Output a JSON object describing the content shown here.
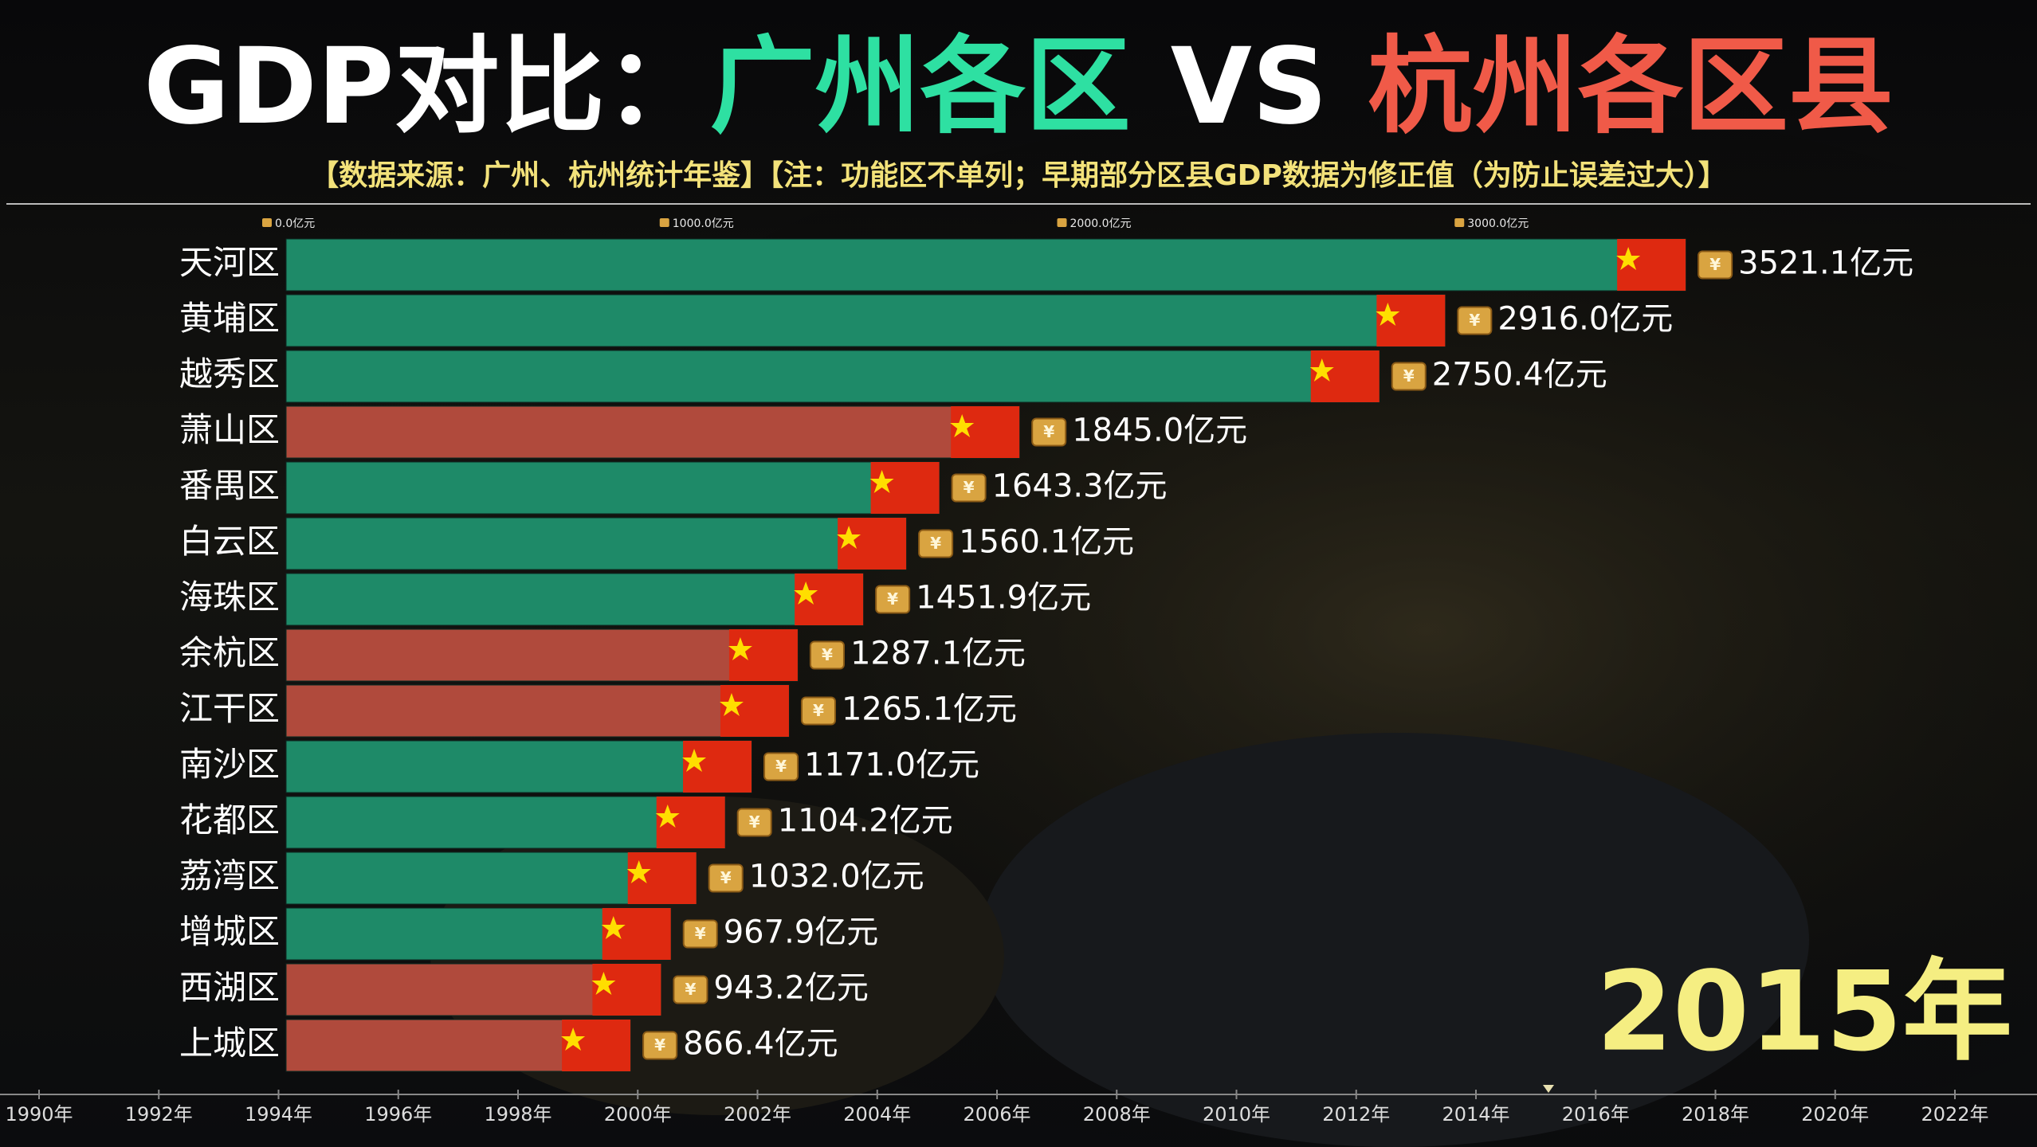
{
  "chart_data": {
    "type": "bar",
    "title": {
      "prefix": "GDP对比：",
      "left": "广州各区",
      "vs": "VS",
      "right": "杭州各区县"
    },
    "subtitle": "【数据来源：广州、杭州统计年鉴】【注：功能区不单列；早期部分区县GDP数据为修正值（为防止误差过大）】",
    "categories": [
      "天河区",
      "黄埔区",
      "越秀区",
      "萧山区",
      "番禺区",
      "白云区",
      "海珠区",
      "余杭区",
      "江干区",
      "南沙区",
      "花都区",
      "荔湾区",
      "增城区",
      "西湖区",
      "上城区"
    ],
    "values": [
      3521.1,
      2916.0,
      2750.4,
      1845.0,
      1643.3,
      1560.1,
      1451.9,
      1287.1,
      1265.1,
      1171.0,
      1104.2,
      1032.0,
      967.9,
      943.2,
      866.4
    ],
    "value_labels": [
      "3521.1亿元",
      "2916.0亿元",
      "2750.4亿元",
      "1845.0亿元",
      "1643.3亿元",
      "1560.1亿元",
      "1451.9亿元",
      "1287.1亿元",
      "1265.1亿元",
      "1171.0亿元",
      "1104.2亿元",
      "1032.0亿元",
      "967.9亿元",
      "943.2亿元",
      "866.4亿元"
    ],
    "colors": [
      "#1e8a68",
      "#1e8a68",
      "#1e8a68",
      "#b04a3c",
      "#1e8a68",
      "#1e8a68",
      "#1e8a68",
      "#b04a3c",
      "#b04a3c",
      "#1e8a68",
      "#1e8a68",
      "#1e8a68",
      "#1e8a68",
      "#b04a3c",
      "#b04a3c"
    ],
    "xlim": [
      0,
      4000
    ],
    "xticks": [
      {
        "value": 0,
        "label": "0.0亿元"
      },
      {
        "value": 1000,
        "label": "1000.0亿元"
      },
      {
        "value": 2000,
        "label": "2000.0亿元"
      },
      {
        "value": 3000,
        "label": "3000.0亿元"
      }
    ],
    "timeline": {
      "labels": [
        "1990年",
        "1992年",
        "1994年",
        "1996年",
        "1998年",
        "2000年",
        "2002年",
        "2004年",
        "2006年",
        "2008年",
        "2010年",
        "2012年",
        "2014年",
        "2016年",
        "2018年",
        "2020年",
        "2022年"
      ],
      "current": "2015年"
    }
  }
}
